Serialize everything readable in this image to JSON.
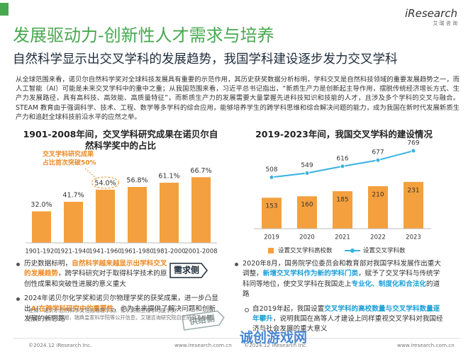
{
  "header": {
    "title": "发展驱动力-创新性人才需求与培养",
    "subtitle": "自然科学显示出交叉学科的发展趋势，我国学科建设逐步发力交叉学科",
    "logo": "iResearch",
    "logo_cn": "艾 瑞 咨 询"
  },
  "intro": "从全球范围来看，诺贝尔自然科学奖对全球科技发展具有重要的示范作用，其历史获奖数据分析标明，学科交叉是自然科技领域的重要发展趋势之一，而人工智能（AI）可能是未来交叉学科中的重中之重；从我国范围来看，习近平总书记指出，“新质生产力是创新起主导作用，摆脱传统经济增长方式、生产力发展路径，具有高科技、高效能、高质量特征”，而新质生产力的发展需要大量掌握先进科技知识和技能的人才，且涉及多个学科的交叉与融合。STEAM 教育由于强调科学、技术、工程、数学等多学科的综合应用，能够培养学生的跨学科思维和综合解决问题的能力，成为我国在新时代发展新质生产力和追赶全球科技前沿水平的应然之举。",
  "chart_data": [
    {
      "type": "bar",
      "title": "1901-2008年间，交叉学科研究成果在诺贝尔自然科学奖中的占比",
      "categories": [
        "1901-1920",
        "1921-1940",
        "1941-1960",
        "1961-1980",
        "1981-2000",
        "2001-2008"
      ],
      "values": [
        32.0,
        41.7,
        54.0,
        56.8,
        61.1,
        66.7
      ],
      "value_labels": [
        "32.0%",
        "41.7%",
        "54.0%",
        "56.8%",
        "61.1%",
        "66.7%"
      ],
      "color": "#f4a03e",
      "ylim": [
        0,
        100
      ],
      "annotation": [
        "交叉学科研究成果",
        "占比首次突破50%"
      ]
    },
    {
      "type": "combo",
      "title": "2019-2023年间，我国交叉学科的建设情况",
      "categories": [
        "2019",
        "2020",
        "2021",
        "2022",
        "2023"
      ],
      "series": [
        {
          "name": "设置交叉学科高校数",
          "color": "#f4a03e",
          "kind": "bar",
          "values": [
            153,
            160,
            185,
            210,
            231
          ]
        },
        {
          "name": "设置交叉学科数",
          "color": "#35b3e3",
          "kind": "line",
          "axis": "y2",
          "values": [
            508,
            549,
            616,
            677,
            769
          ]
        }
      ],
      "ylim": [
        0,
        500
      ],
      "y2lim": [
        0,
        1000
      ],
      "legend": "bottom"
    }
  ],
  "bullets": {
    "left": [
      [
        "历史数据标明，",
        "自然科学越来越显示出学科交叉的发展趋势",
        "，跨学科研究对于取得科学技术的原创性成果和突破性进展的意义重大"
      ],
      [
        "2024年诺贝尔化学奖和诺贝尔物理学奖的获奖成果，进一步凸显出",
        "AI在跨学科研究中的重要性",
        "，也为未来提供了解决问题和创新发展的新思路"
      ]
    ],
    "right": [
      [
        "2020年8月，国务院学位委员会和教育部对我国学科发展作出重大调整，",
        "新增交叉学科作为新的学科门类",
        "，赋予了交叉学科与传统学科同等地位，使交叉学科在我国走上",
        "专业化、制度化和合法化",
        "的道路"
      ],
      [
        "自2019年起，我国设置",
        "交叉学科的高校数量与交叉学科数量逐年攀升",
        "，说明我国在高等人才建设上同样重视交叉学科对我国经济与社会发展的重大意义"
      ]
    ]
  },
  "badges": [
    "需求侧",
    "供给侧"
  ],
  "notes": [
    "注释：诺贝尔自然科学奖包括物理学奖、化学奖和生理学与医学奖",
    "来源：中国科学报，瑞典皇家科学院等公开信息，艾瑞咨询研究院自主研究及绘制。"
  ],
  "footer": [
    {
      "copyright": "©2024.12 iResearch Inc.",
      "url": "www.iresearch.com.cn"
    },
    {
      "copyright": "©2024.12 iResearch Inc.",
      "url": "www.iresearch.com.cn"
    }
  ],
  "watermark": "诚创游戏网"
}
